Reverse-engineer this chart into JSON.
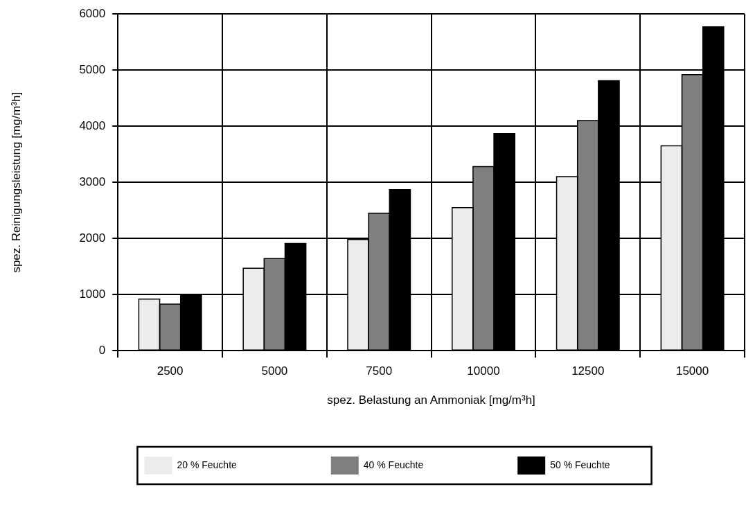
{
  "chart_data": {
    "type": "bar",
    "xlabel": "spez. Belastung an Ammoniak [mg/m³h]",
    "ylabel": "spez. Reinigungsleistung [mg/m³h]",
    "categories": [
      "2500",
      "5000",
      "7500",
      "10000",
      "12500",
      "15000"
    ],
    "series": [
      {
        "name": "20 % Feuchte",
        "color": "#ececec",
        "values": [
          920,
          1470,
          1980,
          2550,
          3100,
          3650
        ]
      },
      {
        "name": "40 % Feuchte",
        "color": "#7f7f7f",
        "values": [
          830,
          1640,
          2450,
          3280,
          4100,
          4920
        ]
      },
      {
        "name": "50 % Feuchte",
        "color": "#000000",
        "values": [
          1000,
          1910,
          2870,
          3870,
          4810,
          5770
        ]
      }
    ],
    "ylim": [
      0,
      6000
    ],
    "yticks": [
      0,
      1000,
      2000,
      3000,
      4000,
      5000,
      6000
    ],
    "grid": true,
    "legend": "bottom"
  }
}
